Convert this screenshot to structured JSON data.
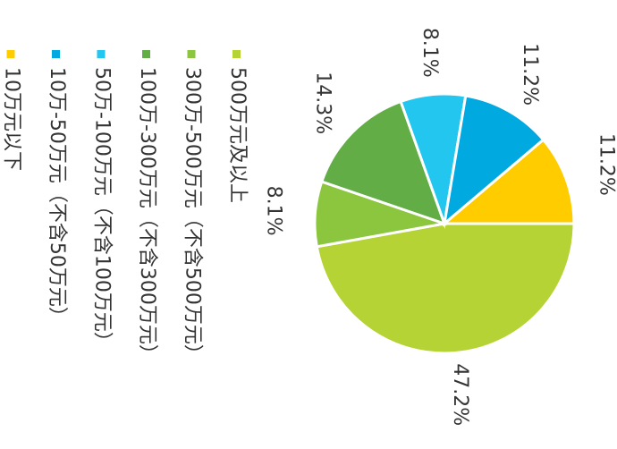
{
  "chart_data": {
    "type": "pie",
    "categories": [
      "500万元及以上",
      "300万-500万元（不含500万元）",
      "100万-300万元（不含300万元）",
      "50万-100万元（不含100万元）",
      "10万-50万元（不含50万元）",
      "10万元以下"
    ],
    "values": [
      47.2,
      8.1,
      14.3,
      8.1,
      11.2,
      11.2
    ],
    "value_labels": [
      "47.2%",
      "8.1%",
      "14.3%",
      "8.1%",
      "11.2%",
      "11.2%"
    ],
    "colors": [
      "#b5d334",
      "#8cc63f",
      "#62ad46",
      "#22c6ef",
      "#00a9e0",
      "#ffcc00"
    ]
  }
}
